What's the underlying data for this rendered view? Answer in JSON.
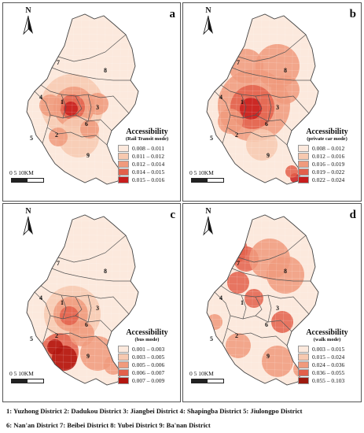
{
  "panels": [
    {
      "letter": "a",
      "north": "N",
      "legend": {
        "title": "Accessibility",
        "subtitle": "(Rail Transit mode)",
        "classes": [
          {
            "label": "0.008 – 0.011",
            "color": "#fce9dd"
          },
          {
            "label": "0.011 – 0.012",
            "color": "#f7c9b0"
          },
          {
            "label": "0.012 – 0.014",
            "color": "#f09a7d"
          },
          {
            "label": "0.014 – 0.015",
            "color": "#e3604b"
          },
          {
            "label": "0.015 – 0.016",
            "color": "#c81d1d"
          }
        ]
      },
      "scale": "0   5   10KM",
      "district_numbers": [
        "1",
        "2",
        "3",
        "4",
        "5",
        "6",
        "7",
        "8",
        "9"
      ]
    },
    {
      "letter": "b",
      "north": "N",
      "legend": {
        "title": "Accessibility",
        "subtitle": "(private car mode)",
        "classes": [
          {
            "label": "0.008 – 0.012",
            "color": "#fce9dd"
          },
          {
            "label": "0.012 – 0.016",
            "color": "#f7c9b0"
          },
          {
            "label": "0.016 – 0.019",
            "color": "#f09a7d"
          },
          {
            "label": "0.019 – 0.022",
            "color": "#e3604b"
          },
          {
            "label": "0.022 – 0.024",
            "color": "#c81d1d"
          }
        ]
      },
      "scale": "0   5   10KM",
      "district_numbers": [
        "1",
        "2",
        "3",
        "4",
        "5",
        "6",
        "7",
        "8",
        "9"
      ]
    },
    {
      "letter": "c",
      "north": "N",
      "legend": {
        "title": "Accessibility",
        "subtitle": "(bus mode)",
        "classes": [
          {
            "label": "0.001 – 0.003",
            "color": "#fce9dd"
          },
          {
            "label": "0.003 – 0.005",
            "color": "#f7c9b0"
          },
          {
            "label": "0.005 – 0.006",
            "color": "#f09a7d"
          },
          {
            "label": "0.006 – 0.007",
            "color": "#e3604b"
          },
          {
            "label": "0.007 – 0.009",
            "color": "#b3160f"
          }
        ]
      },
      "scale": "0   5   10KM",
      "district_numbers": [
        "1",
        "2",
        "3",
        "4",
        "5",
        "6",
        "7",
        "8",
        "9"
      ]
    },
    {
      "letter": "d",
      "north": "N",
      "legend": {
        "title": "Accessibility",
        "subtitle": "(walk mode)",
        "classes": [
          {
            "label": "0.003 – 0.015",
            "color": "#fce9dd"
          },
          {
            "label": "0.015 – 0.024",
            "color": "#f7c9b0"
          },
          {
            "label": "0.024 – 0.036",
            "color": "#f09a7d"
          },
          {
            "label": "0.036 – 0.055",
            "color": "#e3604b"
          },
          {
            "label": "0.055 – 0.103",
            "color": "#9e1a0f"
          }
        ]
      },
      "scale": "0   5   10KM",
      "district_numbers": [
        "1",
        "2",
        "3",
        "4",
        "5",
        "6",
        "7",
        "8",
        "9"
      ]
    }
  ],
  "caption": {
    "line1": "1: Yuzhong District 2: Dadukou District 3: Jiangbei District 4: Shapingba District 5: Jiulongpo District",
    "line2": "6: Nan'an District 7: Beibei District 8: Yubei District 9: Ba'nan District"
  }
}
